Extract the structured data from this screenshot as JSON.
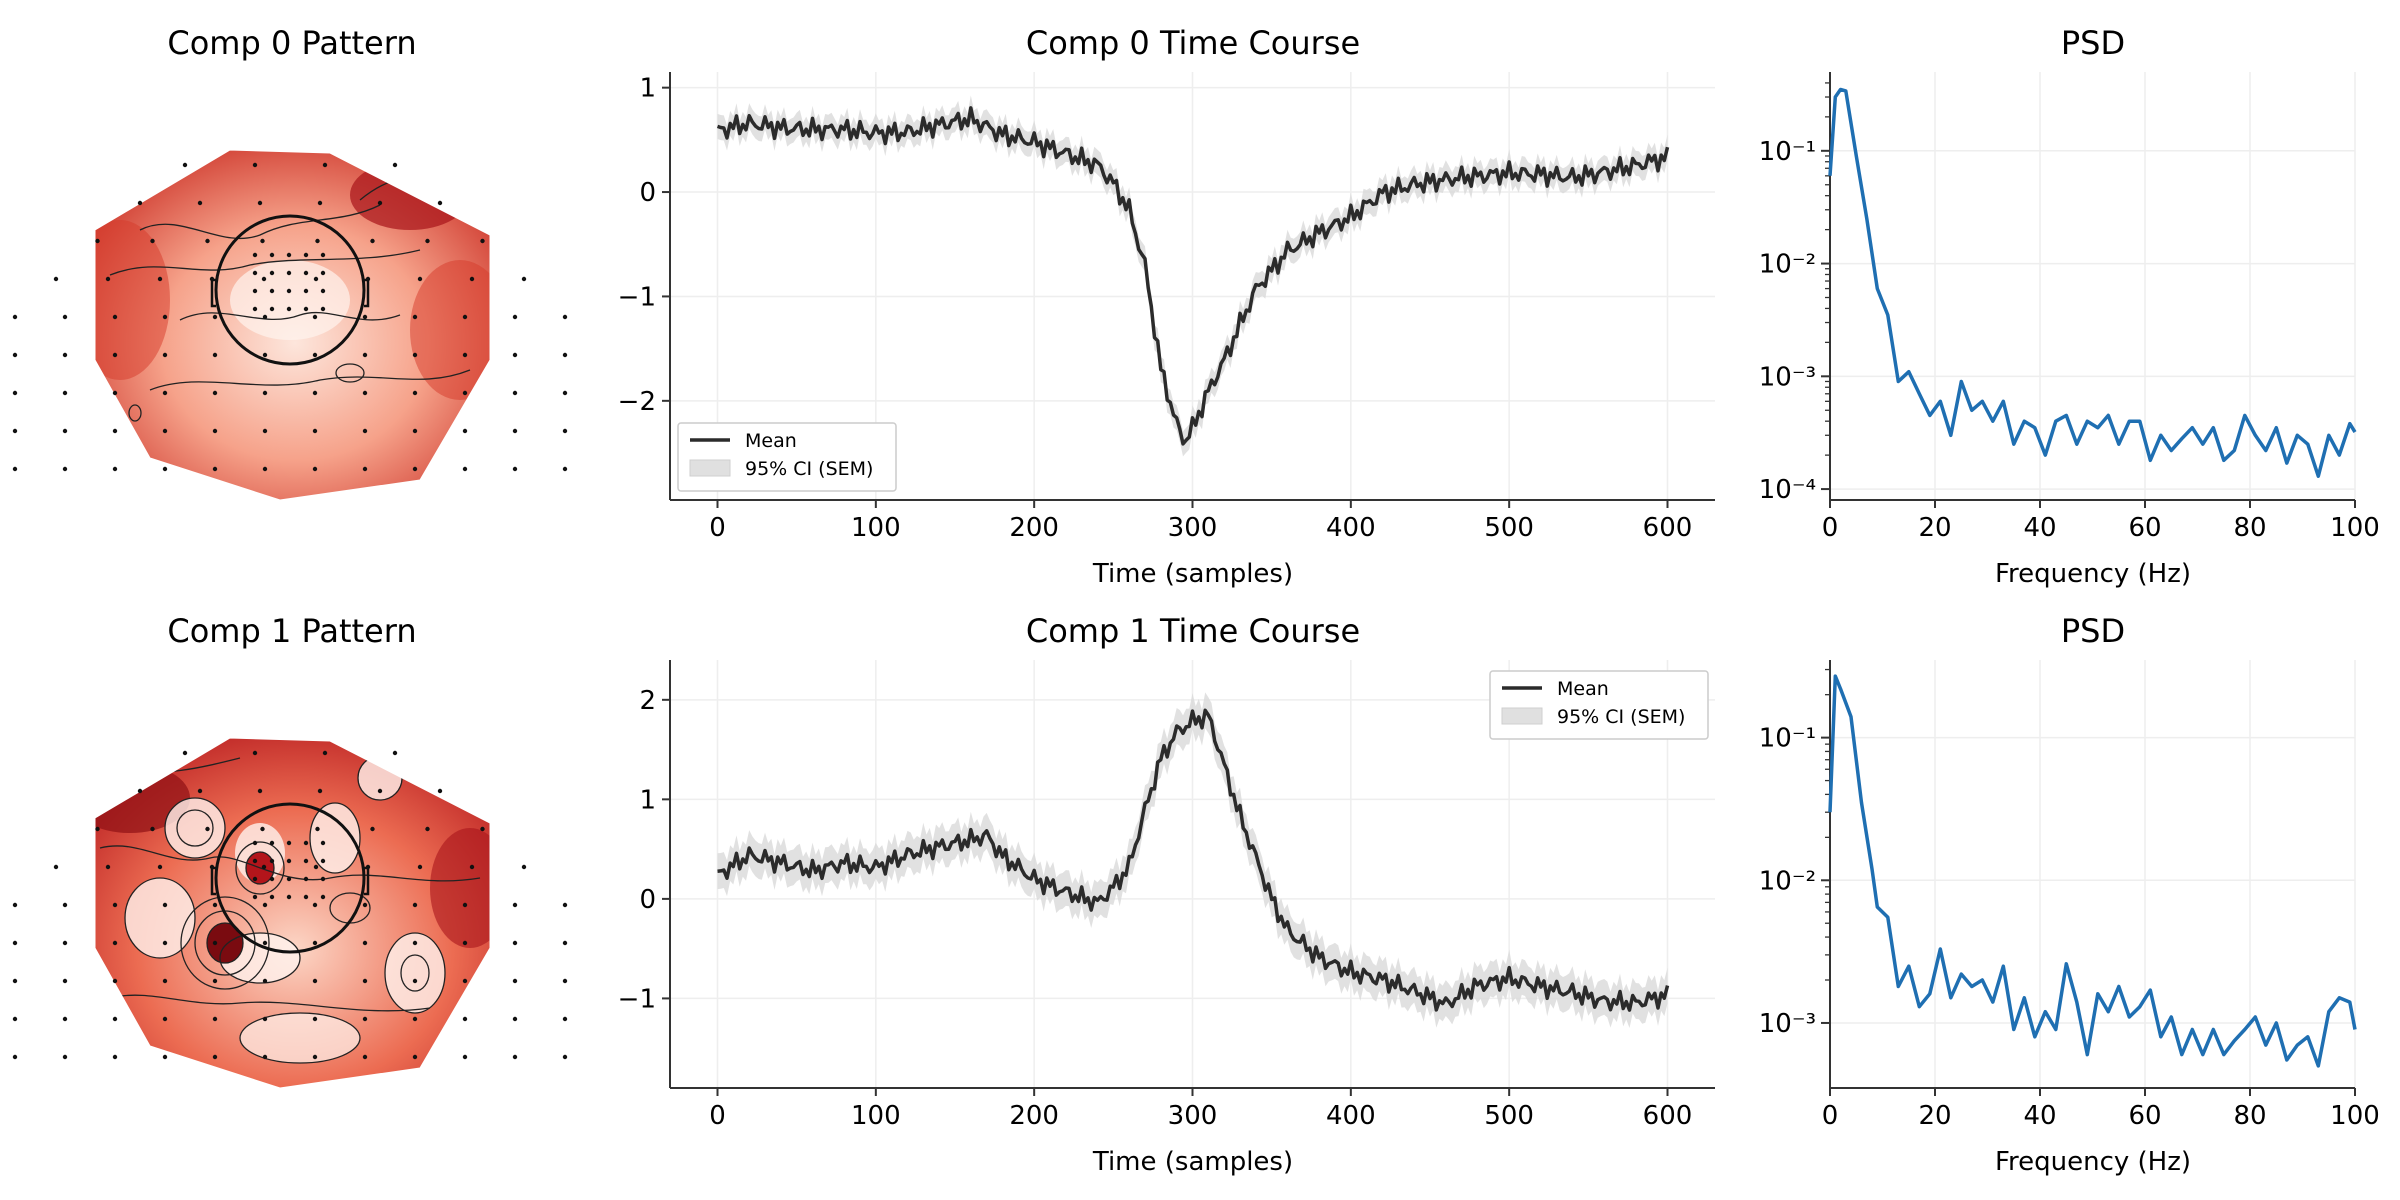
{
  "colors": {
    "mean_line": "#2b2b2b",
    "ci_band": "#d9d9d9",
    "psd_line": "#1f6fb2",
    "grid": "#eeeeee",
    "topo_dark": "#b3151b",
    "topo_light": "#fde6dc"
  },
  "chart_data": [
    {
      "type": "heatmap",
      "kind": "topomap",
      "title": "Comp 0 Pattern",
      "colormap": "Reds",
      "sensor_count": 100,
      "hot_spots_description": "dark red at edges, light center"
    },
    {
      "type": "line",
      "title": "Comp 0 Time Course",
      "xlabel": "Time (samples)",
      "ylabel": "",
      "xlim": [
        -30,
        630
      ],
      "ylim": [
        -2.95,
        1.15
      ],
      "xticks": [
        0,
        100,
        200,
        300,
        400,
        500,
        600
      ],
      "yticks": [
        -2,
        -1,
        0,
        1
      ],
      "grid": true,
      "legend_placement": "lower-left",
      "legend": [
        "Mean",
        "95% CI (SEM)"
      ],
      "series": [
        {
          "name": "Mean",
          "x": [
            0,
            20,
            40,
            60,
            80,
            100,
            120,
            140,
            160,
            180,
            200,
            220,
            240,
            250,
            260,
            270,
            280,
            290,
            295,
            300,
            310,
            320,
            330,
            340,
            350,
            360,
            380,
            400,
            420,
            440,
            460,
            480,
            500,
            520,
            540,
            560,
            580,
            600
          ],
          "values": [
            0.55,
            0.62,
            0.6,
            0.62,
            0.64,
            0.6,
            0.58,
            0.62,
            0.66,
            0.52,
            0.48,
            0.4,
            0.3,
            0.12,
            -0.15,
            -0.7,
            -1.7,
            -2.25,
            -2.42,
            -2.3,
            -1.95,
            -1.65,
            -1.3,
            -0.95,
            -0.75,
            -0.55,
            -0.35,
            -0.2,
            0.0,
            0.05,
            0.08,
            0.12,
            0.18,
            0.2,
            0.18,
            0.22,
            0.25,
            0.3
          ]
        },
        {
          "name": "95% CI (SEM)",
          "half_width": 0.12
        }
      ]
    },
    {
      "type": "line",
      "title": "PSD",
      "xlabel": "Frequency (Hz)",
      "ylabel": "",
      "scale_y": "log",
      "xlim": [
        0,
        100
      ],
      "ylim": [
        8e-05,
        0.5
      ],
      "xticks": [
        0,
        20,
        40,
        60,
        80,
        100
      ],
      "yticks_labels": [
        "10⁻¹",
        "10⁻²",
        "10⁻³",
        "10⁻⁴"
      ],
      "grid": true,
      "series": [
        {
          "name": "",
          "x": [
            0,
            1,
            2,
            3,
            5,
            7,
            9,
            11,
            13,
            15,
            17,
            19,
            21,
            23,
            25,
            27,
            29,
            31,
            33,
            35,
            37,
            39,
            41,
            43,
            45,
            47,
            49,
            51,
            53,
            55,
            57,
            59,
            61,
            63,
            65,
            67,
            69,
            71,
            73,
            75,
            77,
            79,
            81,
            83,
            85,
            87,
            89,
            91,
            93,
            95,
            97,
            99,
            100
          ],
          "values": [
            0.06,
            0.3,
            0.35,
            0.34,
            0.09,
            0.025,
            0.006,
            0.0035,
            0.0009,
            0.0011,
            0.0007,
            0.00045,
            0.0006,
            0.0003,
            0.0009,
            0.0005,
            0.0006,
            0.0004,
            0.0006,
            0.00025,
            0.0004,
            0.00035,
            0.0002,
            0.0004,
            0.00045,
            0.00025,
            0.0004,
            0.00035,
            0.00045,
            0.00025,
            0.0004,
            0.0004,
            0.00018,
            0.0003,
            0.00022,
            0.00028,
            0.00035,
            0.00025,
            0.00035,
            0.00018,
            0.00022,
            0.00045,
            0.0003,
            0.00022,
            0.00035,
            0.00017,
            0.0003,
            0.00025,
            0.00013,
            0.0003,
            0.0002,
            0.00038,
            0.00032
          ]
        }
      ]
    },
    {
      "type": "heatmap",
      "kind": "topomap",
      "title": "Comp 1 Pattern",
      "colormap": "Reds",
      "sensor_count": 100,
      "hot_spots_description": "multiple dark contour islands"
    },
    {
      "type": "line",
      "title": "Comp 1 Time Course",
      "xlabel": "Time (samples)",
      "ylabel": "",
      "xlim": [
        -30,
        630
      ],
      "ylim": [
        -1.9,
        2.4
      ],
      "xticks": [
        0,
        100,
        200,
        300,
        400,
        500,
        600
      ],
      "yticks": [
        -1,
        0,
        1,
        2
      ],
      "grid": true,
      "legend_placement": "upper-right",
      "legend": [
        "Mean",
        "95% CI (SEM)"
      ],
      "series": [
        {
          "name": "Mean",
          "x": [
            0,
            20,
            40,
            60,
            80,
            100,
            120,
            140,
            160,
            170,
            180,
            200,
            220,
            240,
            250,
            260,
            270,
            280,
            290,
            300,
            310,
            320,
            330,
            340,
            350,
            360,
            380,
            400,
            420,
            440,
            460,
            480,
            500,
            520,
            540,
            560,
            580,
            600
          ],
          "values": [
            0.2,
            0.4,
            0.35,
            0.3,
            0.4,
            0.35,
            0.45,
            0.5,
            0.55,
            0.6,
            0.4,
            0.2,
            0.1,
            0.0,
            0.15,
            0.35,
            0.9,
            1.4,
            1.65,
            1.75,
            1.8,
            1.3,
            0.8,
            0.4,
            0.0,
            -0.3,
            -0.55,
            -0.7,
            -0.8,
            -0.95,
            -1.1,
            -0.9,
            -0.8,
            -0.85,
            -0.9,
            -1.0,
            -1.05,
            -1.0
          ]
        },
        {
          "name": "95% CI (SEM)",
          "half_width": 0.18
        }
      ]
    },
    {
      "type": "line",
      "title": "PSD",
      "xlabel": "Frequency (Hz)",
      "ylabel": "",
      "scale_y": "log",
      "xlim": [
        0,
        100
      ],
      "ylim": [
        0.00035,
        0.35
      ],
      "xticks": [
        0,
        20,
        40,
        60,
        80,
        100
      ],
      "yticks_labels": [
        "10⁻¹",
        "10⁻²",
        "10⁻³"
      ],
      "grid": true,
      "series": [
        {
          "name": "",
          "x": [
            0,
            1,
            2,
            4,
            6,
            8,
            9,
            11,
            13,
            15,
            17,
            19,
            21,
            23,
            25,
            27,
            29,
            31,
            33,
            35,
            37,
            39,
            41,
            43,
            45,
            47,
            49,
            51,
            53,
            55,
            57,
            59,
            61,
            63,
            65,
            67,
            69,
            71,
            73,
            75,
            77,
            79,
            81,
            83,
            85,
            87,
            89,
            91,
            93,
            95,
            97,
            99,
            100
          ],
          "values": [
            0.03,
            0.27,
            0.22,
            0.14,
            0.035,
            0.012,
            0.0065,
            0.0055,
            0.0018,
            0.0025,
            0.0013,
            0.0016,
            0.0033,
            0.0015,
            0.0022,
            0.0018,
            0.002,
            0.0014,
            0.0025,
            0.0009,
            0.0015,
            0.0008,
            0.0012,
            0.0009,
            0.0026,
            0.0014,
            0.0006,
            0.0016,
            0.0012,
            0.0018,
            0.0011,
            0.0013,
            0.0017,
            0.0008,
            0.0011,
            0.0006,
            0.0009,
            0.0006,
            0.0009,
            0.0006,
            0.00075,
            0.0009,
            0.0011,
            0.0007,
            0.001,
            0.00055,
            0.0007,
            0.0008,
            0.0005,
            0.0012,
            0.0015,
            0.0014,
            0.0009
          ]
        }
      ]
    }
  ]
}
